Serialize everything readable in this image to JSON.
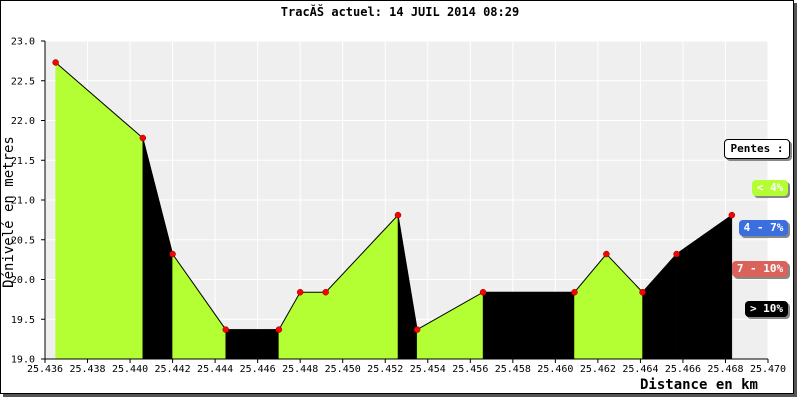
{
  "title": "TracĂŠ actuel: 14 JUIL 2014 08:29",
  "colors": {
    "plot_background": "#efefef",
    "gentle_fill": "#b3ff33",
    "steep_fill": "#000000",
    "point_color": "#ff0000",
    "legend_blue": "#3b6fe0",
    "legend_red": "#d9625b"
  },
  "legend": {
    "title": "Pentes :",
    "items": [
      {
        "label": "< 4%",
        "color": "#b3ff33",
        "text_color": "#ffffff"
      },
      {
        "label": "4 - 7%",
        "color": "#3b6fe0",
        "text_color": "#ffffff"
      },
      {
        "label": "7 - 10%",
        "color": "#d9625b",
        "text_color": "#ffffff"
      },
      {
        "label": "> 10%",
        "color": "#000000",
        "text_color": "#ffffff"
      }
    ]
  },
  "chart_data": {
    "type": "area",
    "title": "TracĂŠ actuel: 14 JUIL 2014 08:29",
    "xlabel": "Distance en km",
    "ylabel": "Dénivelé en metres",
    "xlim": [
      25.436,
      25.47
    ],
    "ylim": [
      19.0,
      23.0
    ],
    "xticks": [
      "25.436",
      "25.438",
      "25.440",
      "25.442",
      "25.444",
      "25.446",
      "25.448",
      "25.450",
      "25.452",
      "25.454",
      "25.456",
      "25.458",
      "25.460",
      "25.462",
      "25.464",
      "25.466",
      "25.468",
      "25.470"
    ],
    "yticks": [
      "19.0",
      "19.5",
      "20.0",
      "20.5",
      "21.0",
      "21.5",
      "22.0",
      "22.5",
      "23.0"
    ],
    "grid": true,
    "legend_position": "right",
    "points": [
      {
        "x": 25.4365,
        "y": 22.73
      },
      {
        "x": 25.4406,
        "y": 21.78
      },
      {
        "x": 25.442,
        "y": 20.32
      },
      {
        "x": 25.4445,
        "y": 19.37
      },
      {
        "x": 25.447,
        "y": 19.37
      },
      {
        "x": 25.448,
        "y": 19.84
      },
      {
        "x": 25.4492,
        "y": 19.84
      },
      {
        "x": 25.4526,
        "y": 20.81
      },
      {
        "x": 25.4535,
        "y": 19.37
      },
      {
        "x": 25.4566,
        "y": 19.84
      },
      {
        "x": 25.4609,
        "y": 19.84
      },
      {
        "x": 25.4624,
        "y": 20.32
      },
      {
        "x": 25.4641,
        "y": 19.84
      },
      {
        "x": 25.4657,
        "y": 20.32
      },
      {
        "x": 25.4683,
        "y": 20.81
      }
    ],
    "segment_classes": [
      "gentle",
      "steep",
      "gentle",
      "steep",
      "gentle",
      "gentle",
      "gentle",
      "steep",
      "gentle",
      "steep",
      "gentle",
      "gentle",
      "steep",
      "steep"
    ]
  }
}
